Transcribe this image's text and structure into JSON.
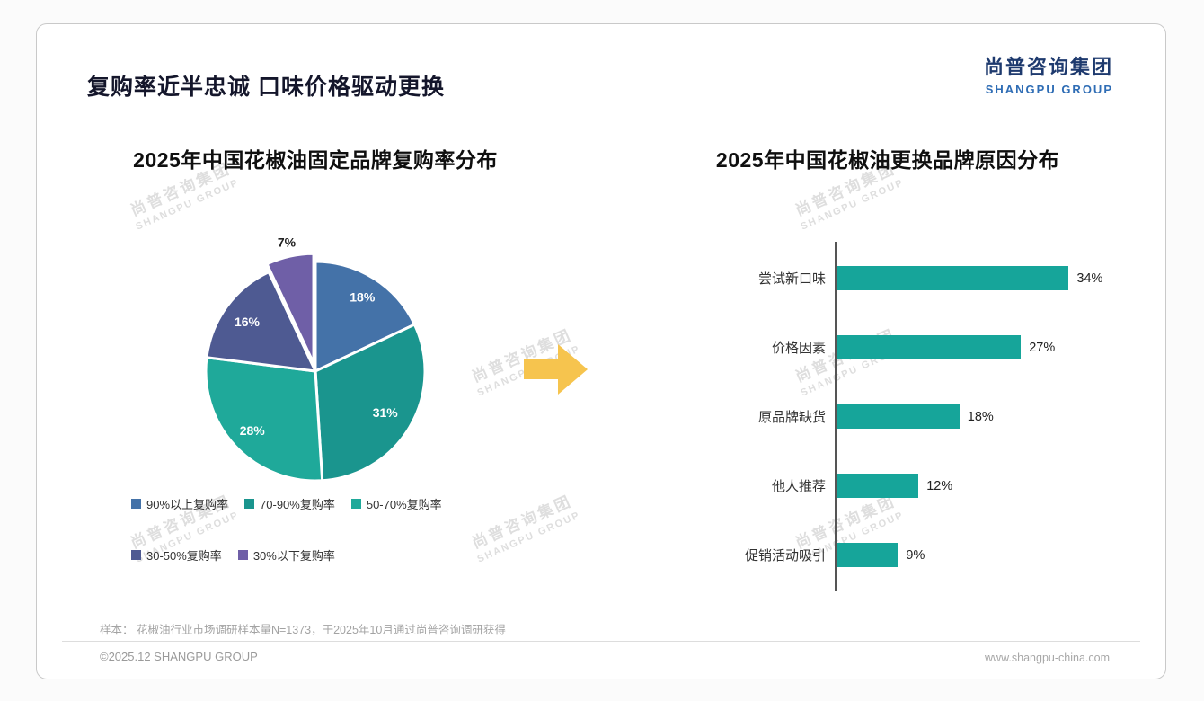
{
  "page": {
    "title": "复购率近半忠诚 口味价格驱动更换",
    "logo": {
      "cn": "尚普咨询集团",
      "en": "SHANGPU GROUP"
    },
    "watermark": {
      "cn": "尚普咨询集团",
      "en": "SHANGPU GROUP"
    },
    "note": "样本： 花椒油行业市场调研样本量N=1373，于2025年10月通过尚普咨询调研获得",
    "footer_left": "©2025.12 SHANGPU GROUP",
    "footer_right": "www.shangpu-china.com",
    "colors": {
      "arrow": "#f6c44e",
      "bar_accent": "#16a59a"
    }
  },
  "chart_data": [
    {
      "type": "pie",
      "title": "2025年中国花椒油固定品牌复购率分布",
      "labels": [
        "90%以上复购率",
        "70-90%复购率",
        "50-70%复购率",
        "30-50%复购率",
        "30%以下复购率"
      ],
      "values": [
        18,
        31,
        28,
        16,
        7
      ],
      "unit": "%",
      "colors": [
        "#4472a8",
        "#1a958e",
        "#1fa99a",
        "#4e5a92",
        "#6f5fa7"
      ],
      "start_angle_deg": 0,
      "legend_position": "bottom"
    },
    {
      "type": "bar",
      "orientation": "horizontal",
      "title": "2025年中国花椒油更换品牌原因分布",
      "categories": [
        "尝试新口味",
        "价格因素",
        "原品牌缺货",
        "他人推荐",
        "促销活动吸引"
      ],
      "values": [
        34,
        27,
        18,
        12,
        9
      ],
      "unit": "%",
      "bar_color": "#16a59a",
      "xlim": [
        0,
        40
      ],
      "grid": false,
      "legend_position": "none"
    }
  ]
}
